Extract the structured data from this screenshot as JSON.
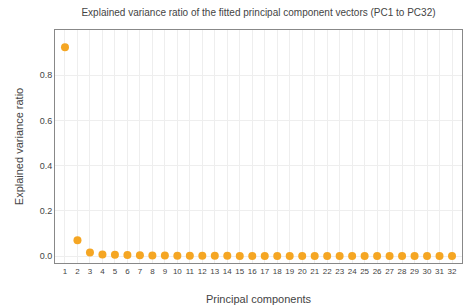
{
  "chart_data": {
    "type": "scatter",
    "title": "Explained variance ratio of the fitted principal component vectors (PC1 to PC32)",
    "xlabel": "Principal components",
    "ylabel": "Explained variance ratio",
    "x": [
      1,
      2,
      3,
      4,
      5,
      6,
      7,
      8,
      9,
      10,
      11,
      12,
      13,
      14,
      15,
      16,
      17,
      18,
      19,
      20,
      21,
      22,
      23,
      24,
      25,
      26,
      27,
      28,
      29,
      30,
      31,
      32
    ],
    "values": [
      0.924,
      0.071,
      0.016,
      0.008,
      0.006,
      0.005,
      0.004,
      0.003,
      0.003,
      0.002,
      0.002,
      0.002,
      0.002,
      0.002,
      0.001,
      0.001,
      0.001,
      0.001,
      0.001,
      0.001,
      0.001,
      0.001,
      0.001,
      0.001,
      0.001,
      0.001,
      0.001,
      0.001,
      0.001,
      0.001,
      0.001,
      0.001
    ],
    "color": "#f5a623",
    "xlim": [
      0.2,
      32.8
    ],
    "xticks": [
      1,
      2,
      3,
      4,
      5,
      6,
      7,
      8,
      9,
      10,
      11,
      12,
      13,
      14,
      15,
      16,
      17,
      18,
      19,
      20,
      21,
      22,
      23,
      24,
      25,
      26,
      27,
      28,
      29,
      30,
      31,
      32
    ],
    "ylim": [
      -0.03,
      1.0
    ],
    "yticks": [
      {
        "value": 0.0,
        "label": "0.0"
      },
      0.2,
      0.4,
      0.6,
      0.8
    ],
    "grid": true
  }
}
